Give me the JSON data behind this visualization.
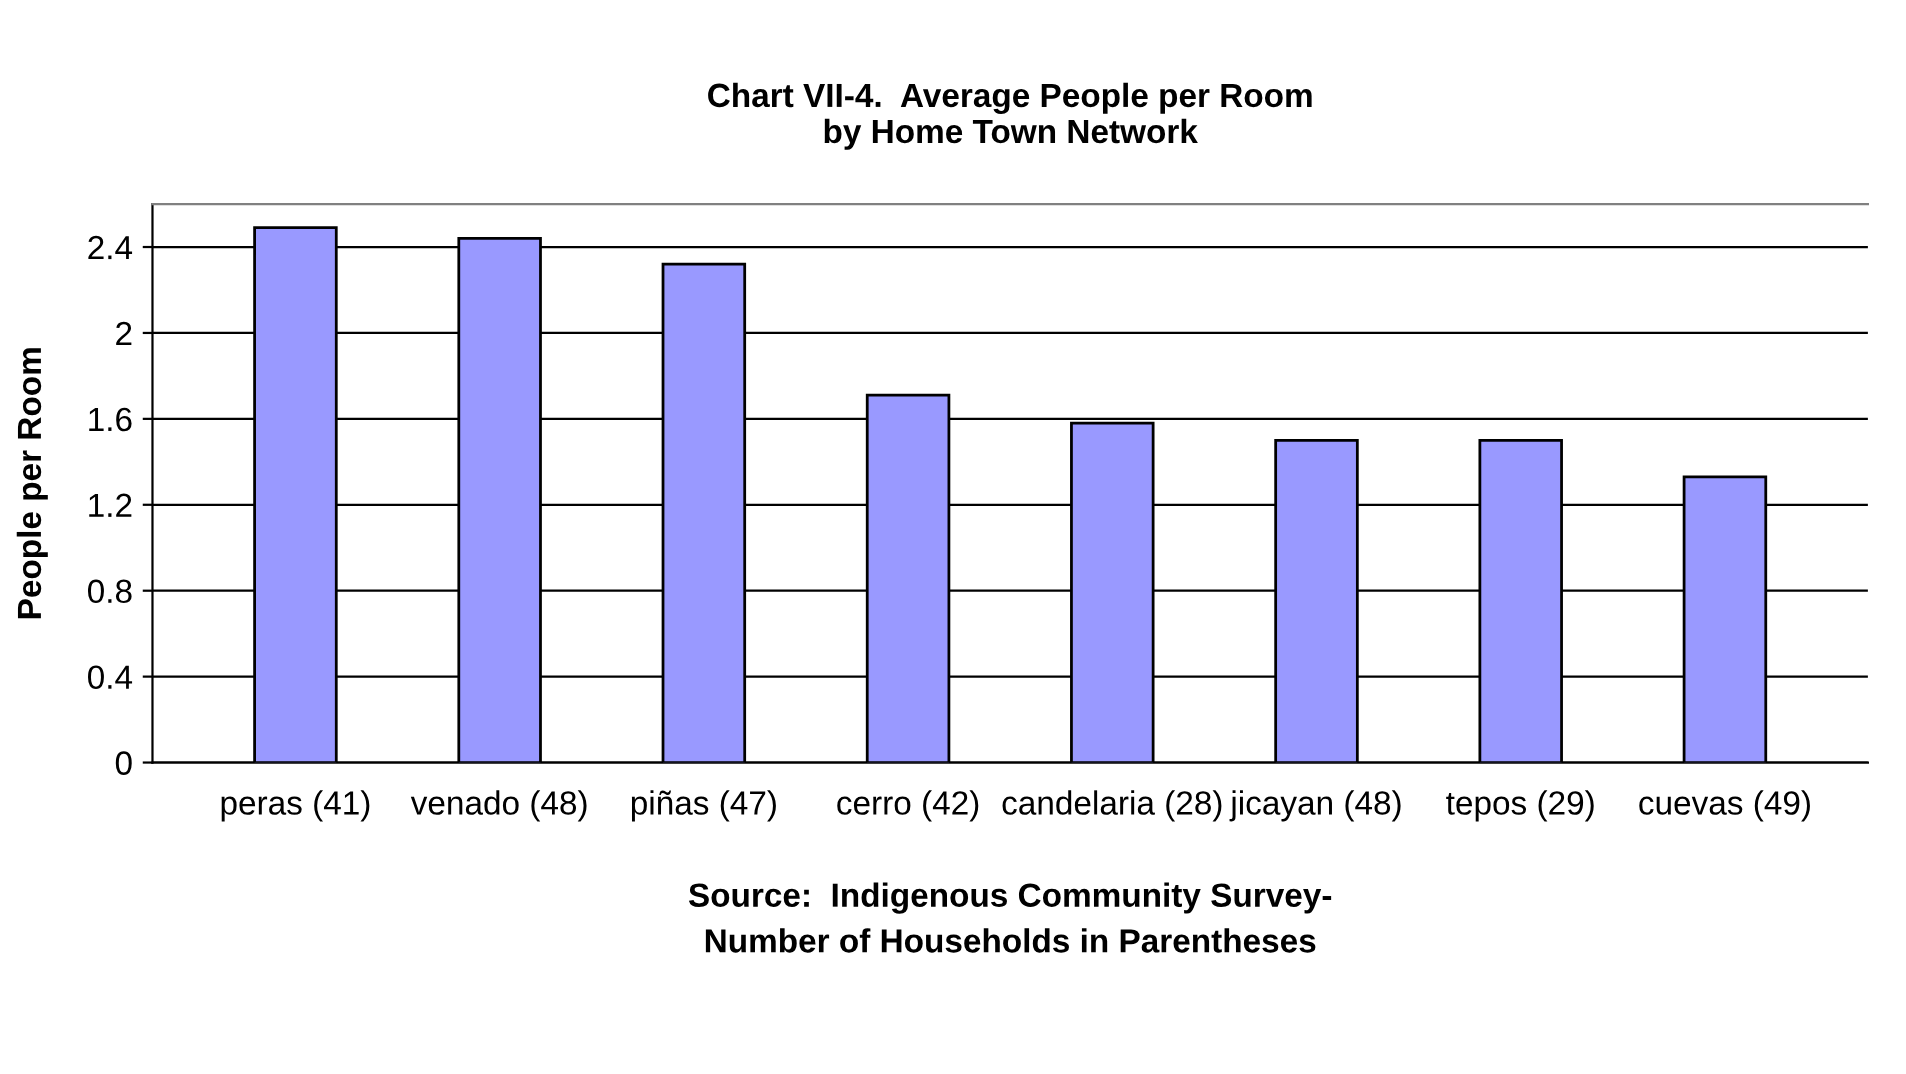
{
  "chart_data": {
    "type": "bar",
    "title": "Chart VII-4.  Average People per Room\nby Home Town Network",
    "ylabel": "People per Room",
    "xlabel": "Source:  Indigenous Community Survey-\nNumber of Households in Parentheses",
    "categories": [
      "peras (41)",
      "venado (48)",
      "piñas (47)",
      "cerro (42)",
      "candelaria (28)",
      "jicayan (48)",
      "tepos (29)",
      "cuevas (49)"
    ],
    "values": [
      2.49,
      2.44,
      2.32,
      1.71,
      1.58,
      1.5,
      1.5,
      1.33
    ],
    "color": "#9999ff",
    "ylim": [
      0,
      2.6
    ],
    "yticks": [
      0,
      0.4,
      0.8,
      1.2,
      1.6,
      2,
      2.4
    ],
    "grid": "y"
  }
}
